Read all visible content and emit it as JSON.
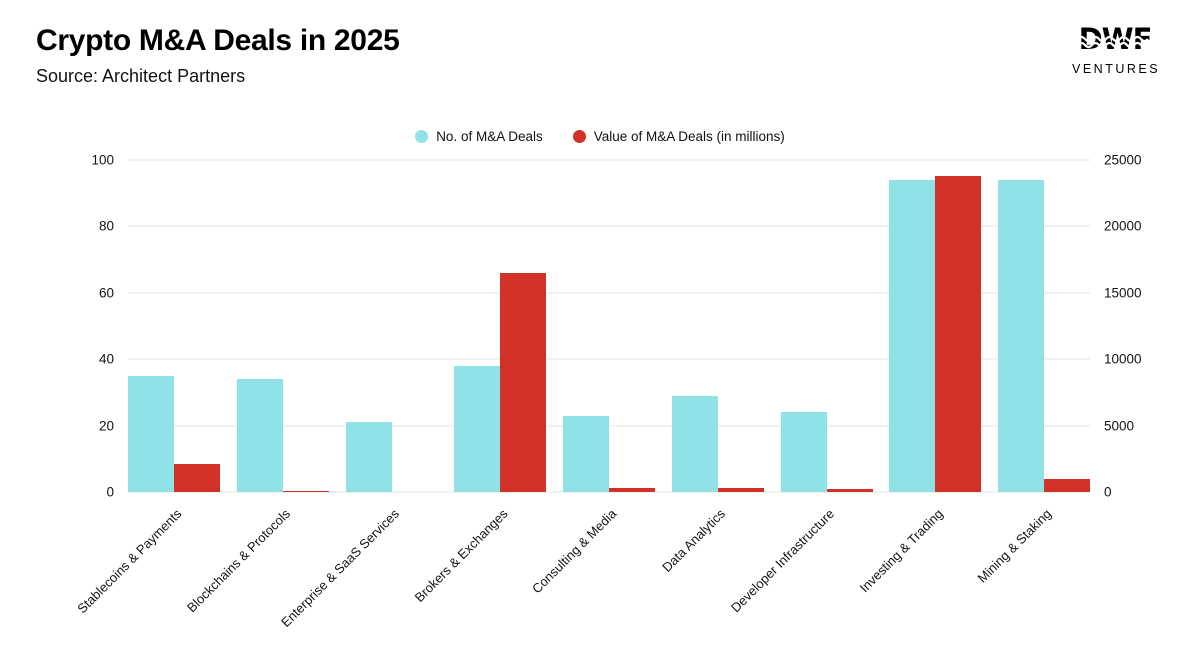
{
  "header": {
    "title": "Crypto M&A Deals in 2025",
    "subtitle": "Source: Architect Partners"
  },
  "logo": {
    "brand": "DWF",
    "sub": "VENTURES"
  },
  "legend": [
    {
      "label": "No. of M&A Deals",
      "color": "#8fe3e6"
    },
    {
      "label": "Value of M&A Deals (in millions)",
      "color": "#d13127"
    }
  ],
  "chart_data": {
    "type": "bar",
    "title": "Crypto M&A Deals in 2025",
    "subtitle": "Source: Architect Partners",
    "grid": true,
    "legend_position": "top",
    "categories": [
      "Stablecoins & Payments",
      "Blockchains & Protocols",
      "Enterprise & SaaS Services",
      "Brokers & Exchanges",
      "Consulting & Media",
      "Data Analytics",
      "Developer Infrastructure",
      "Investing & Trading",
      "Mining & Staking"
    ],
    "series": [
      {
        "name": "No. of M&A Deals",
        "axis": "left",
        "color": "#8fe3e6",
        "values": [
          35,
          34,
          21,
          38,
          23,
          29,
          24,
          94,
          94
        ]
      },
      {
        "name": "Value of M&A Deals (in millions)",
        "axis": "right",
        "color": "#d13127",
        "values": [
          2100,
          100,
          0,
          16500,
          300,
          300,
          200,
          23800,
          1000
        ]
      }
    ],
    "left_axis": {
      "ticks": [
        0,
        20,
        40,
        60,
        80,
        100
      ],
      "max": 100
    },
    "right_axis": {
      "ticks": [
        0,
        5000,
        10000,
        15000,
        20000,
        25000
      ],
      "max": 25000
    }
  }
}
